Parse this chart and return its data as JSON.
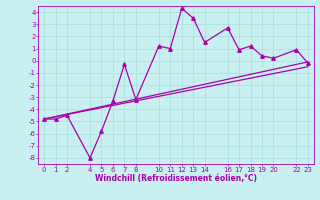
{
  "bg_color": "#c8f0f0",
  "line_color": "#aa00aa",
  "grid_color": "#aadddd",
  "xlabel": "Windchill (Refroidissement éolien,°C)",
  "xlim": [
    -0.5,
    23.5
  ],
  "ylim": [
    -8.5,
    4.5
  ],
  "xticks": [
    0,
    1,
    2,
    4,
    5,
    6,
    7,
    8,
    10,
    11,
    12,
    13,
    14,
    16,
    17,
    18,
    19,
    20,
    22,
    23
  ],
  "yticks": [
    4,
    3,
    2,
    1,
    0,
    -1,
    -2,
    -3,
    -4,
    -5,
    -6,
    -7,
    -8
  ],
  "line1_x": [
    0,
    1,
    2,
    4,
    5,
    6,
    7,
    8,
    10,
    11,
    12,
    13,
    14,
    16,
    17,
    18,
    19,
    20,
    22,
    23
  ],
  "line1_y": [
    -4.8,
    -4.8,
    -4.5,
    -8.0,
    -5.8,
    -3.3,
    -0.3,
    -3.2,
    1.2,
    1.0,
    4.3,
    3.5,
    1.5,
    2.7,
    0.9,
    1.2,
    0.4,
    0.2,
    0.9,
    -0.2
  ],
  "line2_x": [
    0,
    23
  ],
  "line2_y": [
    -4.8,
    -0.1
  ],
  "line3_x": [
    0,
    23
  ],
  "line3_y": [
    -4.8,
    -0.5
  ],
  "marker": "^",
  "markersize": 2.5,
  "linewidth": 0.9,
  "tick_fontsize": 5.0,
  "xlabel_fontsize": 5.5
}
